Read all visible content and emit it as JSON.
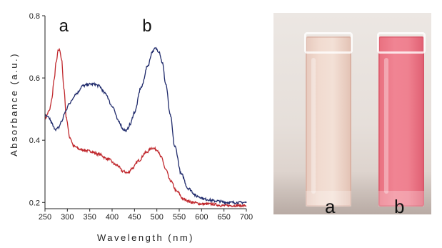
{
  "chart_data": {
    "type": "line",
    "title": "",
    "xlabel": "Wavelength (nm)",
    "ylabel": "Absorbance (a.u.)",
    "xlim": [
      250,
      700
    ],
    "ylim": [
      0.18,
      0.8
    ],
    "xticks": [
      250,
      300,
      350,
      400,
      450,
      500,
      550,
      600,
      650,
      700
    ],
    "yticks": [
      0.2,
      0.4,
      0.6,
      0.8
    ],
    "grid": false,
    "legend": "none",
    "series": [
      {
        "name": "a",
        "color": "#c0282d",
        "x": [
          250,
          260,
          265,
          270,
          275,
          280,
          283,
          287,
          292,
          298,
          305,
          315,
          330,
          350,
          370,
          390,
          410,
          425,
          435,
          445,
          460,
          475,
          490,
          500,
          510,
          520,
          530,
          545,
          560,
          580,
          600,
          620,
          650,
          700
        ],
        "y": [
          0.47,
          0.495,
          0.53,
          0.59,
          0.65,
          0.69,
          0.69,
          0.66,
          0.57,
          0.47,
          0.41,
          0.38,
          0.37,
          0.365,
          0.355,
          0.34,
          0.32,
          0.3,
          0.295,
          0.31,
          0.335,
          0.36,
          0.375,
          0.37,
          0.345,
          0.305,
          0.27,
          0.235,
          0.21,
          0.2,
          0.195,
          0.195,
          0.19,
          0.19
        ]
      },
      {
        "name": "b",
        "color": "#1f2a6b",
        "x": [
          250,
          255,
          260,
          265,
          270,
          275,
          280,
          287,
          295,
          305,
          320,
          335,
          350,
          360,
          370,
          385,
          400,
          415,
          425,
          432,
          440,
          450,
          465,
          480,
          490,
          497,
          505,
          512,
          520,
          530,
          540,
          555,
          570,
          590,
          610,
          630,
          660,
          700
        ],
        "y": [
          0.48,
          0.475,
          0.47,
          0.455,
          0.44,
          0.435,
          0.44,
          0.46,
          0.49,
          0.52,
          0.55,
          0.575,
          0.58,
          0.58,
          0.575,
          0.55,
          0.51,
          0.46,
          0.435,
          0.43,
          0.45,
          0.49,
          0.57,
          0.64,
          0.685,
          0.695,
          0.685,
          0.65,
          0.58,
          0.48,
          0.38,
          0.29,
          0.245,
          0.22,
          0.21,
          0.205,
          0.2,
          0.2
        ]
      }
    ],
    "annotations": [
      {
        "text": "a",
        "x": 292,
        "y": 0.75
      },
      {
        "text": "b",
        "x": 478,
        "y": 0.75
      }
    ]
  },
  "photo": {
    "label_a": "a",
    "label_b": "b"
  }
}
